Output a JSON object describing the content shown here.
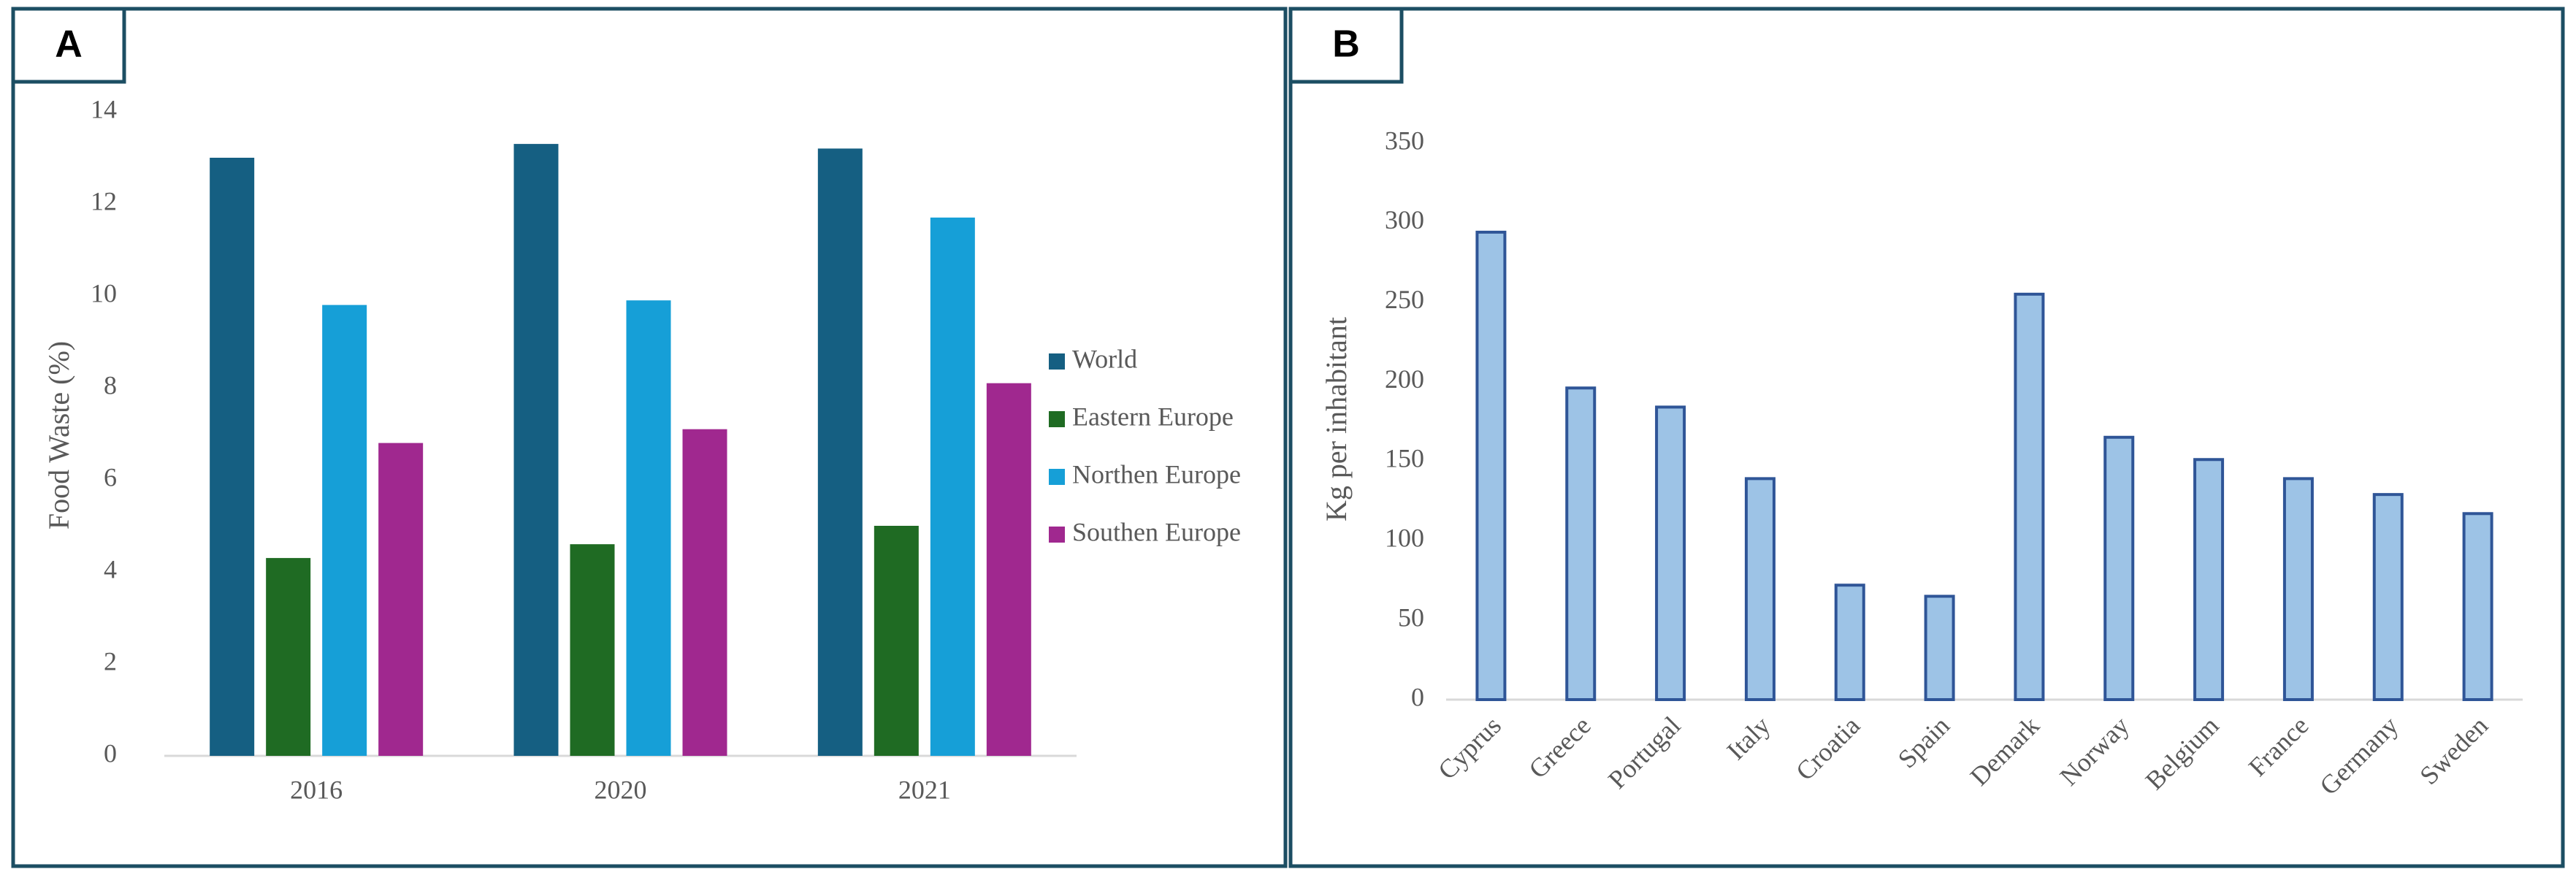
{
  "chart_data": [
    {
      "type": "bar",
      "label": "A",
      "y_label": "Food Waste (%)",
      "categories": [
        "2016",
        "2020",
        "2021"
      ],
      "series": [
        {
          "name": "World",
          "color": "#155f82",
          "values": [
            13.0,
            13.3,
            13.2
          ]
        },
        {
          "name": "Eastern Europe",
          "color": "#1f6b23",
          "values": [
            4.3,
            4.6,
            5.0
          ]
        },
        {
          "name": "Northen Europe",
          "color": "#169fd7",
          "values": [
            9.8,
            9.9,
            11.7
          ]
        },
        {
          "name": "Southen Europe",
          "color": "#a0288f",
          "values": [
            6.8,
            7.1,
            8.1
          ]
        }
      ],
      "ylim": [
        0,
        14
      ],
      "yticks": [
        0,
        2,
        4,
        6,
        8,
        10,
        12,
        14
      ],
      "legend": "right",
      "grid": false
    },
    {
      "type": "bar",
      "label": "B",
      "y_label": "Kg per inhabitant",
      "categories": [
        "Cyprus",
        "Greece",
        "Portugal",
        "Italy",
        "Croatia",
        "Spain",
        "Demark",
        "Norway",
        "Belgium",
        "France",
        "Germany",
        "Sweden"
      ],
      "values": [
        294,
        196,
        184,
        139,
        72,
        65,
        255,
        165,
        151,
        139,
        129,
        117
      ],
      "color": "#9dc3e6",
      "edge_color": "#2f5597",
      "ylim": [
        0,
        350
      ],
      "yticks": [
        0,
        50,
        100,
        150,
        200,
        250,
        300,
        350
      ],
      "grid": false
    }
  ]
}
